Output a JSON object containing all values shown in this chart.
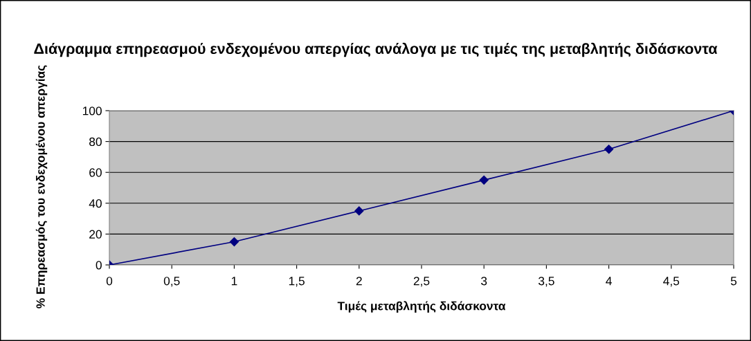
{
  "chart_data": {
    "type": "line",
    "title": "Διάγραμμα επηρεασμού ενδεχομένου απεργίας ανάλογα με τις τιμές της μεταβλητής διδάσκοντα",
    "xlabel": "Τιμές μεταβλητής διδάσκοντα",
    "ylabel": "% Επηρεασμός του ενδεχομένου απεργίας",
    "x": [
      0,
      1,
      2,
      3,
      4,
      5
    ],
    "series": [
      {
        "color": "#000080",
        "values": [
          0,
          15,
          35,
          55,
          75,
          100
        ]
      }
    ],
    "xlim": [
      0,
      5
    ],
    "xticks": [
      0,
      {
        "value": 0.5,
        "label": "0,5"
      },
      1,
      {
        "value": 1.5,
        "label": "1,5"
      },
      2,
      {
        "value": 2.5,
        "label": "2,5"
      },
      3,
      {
        "value": 3.5,
        "label": "3,5"
      },
      4,
      {
        "value": 4.5,
        "label": "4,5"
      },
      5
    ],
    "ylim": [
      0,
      100
    ],
    "yticks": [
      0,
      20,
      40,
      60,
      80,
      100
    ],
    "grid": "y",
    "marker": "diamond",
    "line_style": "solid"
  }
}
